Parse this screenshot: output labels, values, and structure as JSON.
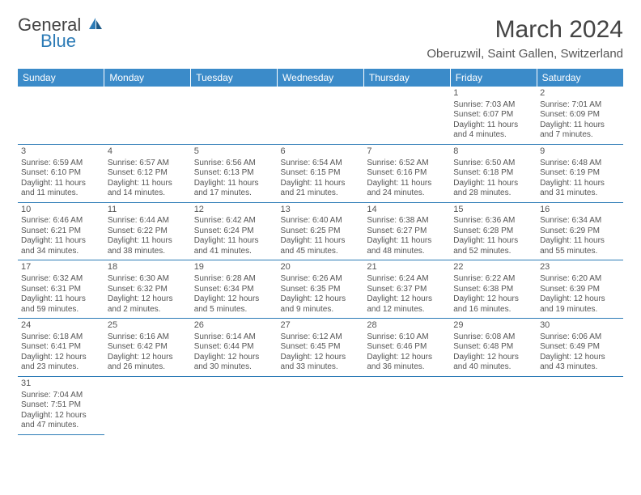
{
  "brand": {
    "name_part1": "General",
    "name_part2": "Blue"
  },
  "title": "March 2024",
  "location": "Oberuzwil, Saint Gallen, Switzerland",
  "colors": {
    "header_bg": "#3b8bc9",
    "header_text": "#ffffff",
    "row_border": "#2c7bb6",
    "text": "#555555",
    "title_text": "#444444"
  },
  "day_headers": [
    "Sunday",
    "Monday",
    "Tuesday",
    "Wednesday",
    "Thursday",
    "Friday",
    "Saturday"
  ],
  "weeks": [
    [
      null,
      null,
      null,
      null,
      null,
      {
        "n": "1",
        "sunrise": "Sunrise: 7:03 AM",
        "sunset": "Sunset: 6:07 PM",
        "daylight1": "Daylight: 11 hours",
        "daylight2": "and 4 minutes."
      },
      {
        "n": "2",
        "sunrise": "Sunrise: 7:01 AM",
        "sunset": "Sunset: 6:09 PM",
        "daylight1": "Daylight: 11 hours",
        "daylight2": "and 7 minutes."
      }
    ],
    [
      {
        "n": "3",
        "sunrise": "Sunrise: 6:59 AM",
        "sunset": "Sunset: 6:10 PM",
        "daylight1": "Daylight: 11 hours",
        "daylight2": "and 11 minutes."
      },
      {
        "n": "4",
        "sunrise": "Sunrise: 6:57 AM",
        "sunset": "Sunset: 6:12 PM",
        "daylight1": "Daylight: 11 hours",
        "daylight2": "and 14 minutes."
      },
      {
        "n": "5",
        "sunrise": "Sunrise: 6:56 AM",
        "sunset": "Sunset: 6:13 PM",
        "daylight1": "Daylight: 11 hours",
        "daylight2": "and 17 minutes."
      },
      {
        "n": "6",
        "sunrise": "Sunrise: 6:54 AM",
        "sunset": "Sunset: 6:15 PM",
        "daylight1": "Daylight: 11 hours",
        "daylight2": "and 21 minutes."
      },
      {
        "n": "7",
        "sunrise": "Sunrise: 6:52 AM",
        "sunset": "Sunset: 6:16 PM",
        "daylight1": "Daylight: 11 hours",
        "daylight2": "and 24 minutes."
      },
      {
        "n": "8",
        "sunrise": "Sunrise: 6:50 AM",
        "sunset": "Sunset: 6:18 PM",
        "daylight1": "Daylight: 11 hours",
        "daylight2": "and 28 minutes."
      },
      {
        "n": "9",
        "sunrise": "Sunrise: 6:48 AM",
        "sunset": "Sunset: 6:19 PM",
        "daylight1": "Daylight: 11 hours",
        "daylight2": "and 31 minutes."
      }
    ],
    [
      {
        "n": "10",
        "sunrise": "Sunrise: 6:46 AM",
        "sunset": "Sunset: 6:21 PM",
        "daylight1": "Daylight: 11 hours",
        "daylight2": "and 34 minutes."
      },
      {
        "n": "11",
        "sunrise": "Sunrise: 6:44 AM",
        "sunset": "Sunset: 6:22 PM",
        "daylight1": "Daylight: 11 hours",
        "daylight2": "and 38 minutes."
      },
      {
        "n": "12",
        "sunrise": "Sunrise: 6:42 AM",
        "sunset": "Sunset: 6:24 PM",
        "daylight1": "Daylight: 11 hours",
        "daylight2": "and 41 minutes."
      },
      {
        "n": "13",
        "sunrise": "Sunrise: 6:40 AM",
        "sunset": "Sunset: 6:25 PM",
        "daylight1": "Daylight: 11 hours",
        "daylight2": "and 45 minutes."
      },
      {
        "n": "14",
        "sunrise": "Sunrise: 6:38 AM",
        "sunset": "Sunset: 6:27 PM",
        "daylight1": "Daylight: 11 hours",
        "daylight2": "and 48 minutes."
      },
      {
        "n": "15",
        "sunrise": "Sunrise: 6:36 AM",
        "sunset": "Sunset: 6:28 PM",
        "daylight1": "Daylight: 11 hours",
        "daylight2": "and 52 minutes."
      },
      {
        "n": "16",
        "sunrise": "Sunrise: 6:34 AM",
        "sunset": "Sunset: 6:29 PM",
        "daylight1": "Daylight: 11 hours",
        "daylight2": "and 55 minutes."
      }
    ],
    [
      {
        "n": "17",
        "sunrise": "Sunrise: 6:32 AM",
        "sunset": "Sunset: 6:31 PM",
        "daylight1": "Daylight: 11 hours",
        "daylight2": "and 59 minutes."
      },
      {
        "n": "18",
        "sunrise": "Sunrise: 6:30 AM",
        "sunset": "Sunset: 6:32 PM",
        "daylight1": "Daylight: 12 hours",
        "daylight2": "and 2 minutes."
      },
      {
        "n": "19",
        "sunrise": "Sunrise: 6:28 AM",
        "sunset": "Sunset: 6:34 PM",
        "daylight1": "Daylight: 12 hours",
        "daylight2": "and 5 minutes."
      },
      {
        "n": "20",
        "sunrise": "Sunrise: 6:26 AM",
        "sunset": "Sunset: 6:35 PM",
        "daylight1": "Daylight: 12 hours",
        "daylight2": "and 9 minutes."
      },
      {
        "n": "21",
        "sunrise": "Sunrise: 6:24 AM",
        "sunset": "Sunset: 6:37 PM",
        "daylight1": "Daylight: 12 hours",
        "daylight2": "and 12 minutes."
      },
      {
        "n": "22",
        "sunrise": "Sunrise: 6:22 AM",
        "sunset": "Sunset: 6:38 PM",
        "daylight1": "Daylight: 12 hours",
        "daylight2": "and 16 minutes."
      },
      {
        "n": "23",
        "sunrise": "Sunrise: 6:20 AM",
        "sunset": "Sunset: 6:39 PM",
        "daylight1": "Daylight: 12 hours",
        "daylight2": "and 19 minutes."
      }
    ],
    [
      {
        "n": "24",
        "sunrise": "Sunrise: 6:18 AM",
        "sunset": "Sunset: 6:41 PM",
        "daylight1": "Daylight: 12 hours",
        "daylight2": "and 23 minutes."
      },
      {
        "n": "25",
        "sunrise": "Sunrise: 6:16 AM",
        "sunset": "Sunset: 6:42 PM",
        "daylight1": "Daylight: 12 hours",
        "daylight2": "and 26 minutes."
      },
      {
        "n": "26",
        "sunrise": "Sunrise: 6:14 AM",
        "sunset": "Sunset: 6:44 PM",
        "daylight1": "Daylight: 12 hours",
        "daylight2": "and 30 minutes."
      },
      {
        "n": "27",
        "sunrise": "Sunrise: 6:12 AM",
        "sunset": "Sunset: 6:45 PM",
        "daylight1": "Daylight: 12 hours",
        "daylight2": "and 33 minutes."
      },
      {
        "n": "28",
        "sunrise": "Sunrise: 6:10 AM",
        "sunset": "Sunset: 6:46 PM",
        "daylight1": "Daylight: 12 hours",
        "daylight2": "and 36 minutes."
      },
      {
        "n": "29",
        "sunrise": "Sunrise: 6:08 AM",
        "sunset": "Sunset: 6:48 PM",
        "daylight1": "Daylight: 12 hours",
        "daylight2": "and 40 minutes."
      },
      {
        "n": "30",
        "sunrise": "Sunrise: 6:06 AM",
        "sunset": "Sunset: 6:49 PM",
        "daylight1": "Daylight: 12 hours",
        "daylight2": "and 43 minutes."
      }
    ],
    [
      {
        "n": "31",
        "sunrise": "Sunrise: 7:04 AM",
        "sunset": "Sunset: 7:51 PM",
        "daylight1": "Daylight: 12 hours",
        "daylight2": "and 47 minutes."
      },
      null,
      null,
      null,
      null,
      null,
      null
    ]
  ]
}
